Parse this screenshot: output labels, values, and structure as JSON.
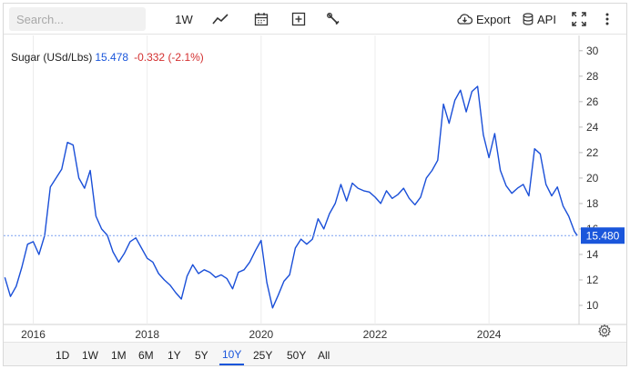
{
  "toolbar": {
    "search_placeholder": "Search...",
    "interval_label": "1W",
    "export_label": "Export",
    "api_label": "API",
    "icons": [
      "line-chart-icon",
      "calendar-icon",
      "add-indicator-icon",
      "drawing-tools-icon",
      "download-icon",
      "database-icon",
      "fullscreen-icon",
      "more-icon"
    ]
  },
  "legend": {
    "name": "Sugar (USd/Lbs)",
    "value": "15.478",
    "change": "-0.332 (-2.1%)"
  },
  "price_tag": "15.480",
  "ranges": [
    {
      "label": "1D",
      "active": false
    },
    {
      "label": "1W",
      "active": false
    },
    {
      "label": "1M",
      "active": false
    },
    {
      "label": "6M",
      "active": false
    },
    {
      "label": "1Y",
      "active": false
    },
    {
      "label": "5Y",
      "active": false
    },
    {
      "label": "10Y",
      "active": true
    },
    {
      "label": "25Y",
      "active": false
    },
    {
      "label": "50Y",
      "active": false
    },
    {
      "label": "All",
      "active": false
    }
  ],
  "colors": {
    "line": "#1a4fd8",
    "price_tag": "#1a56db",
    "change_negative": "#d32f2f"
  },
  "chart_data": {
    "type": "line",
    "series": [
      {
        "name": "Sugar (USd/Lbs)",
        "x": [
          2015.5,
          2015.6,
          2015.7,
          2015.8,
          2015.9,
          2016.0,
          2016.1,
          2016.2,
          2016.3,
          2016.4,
          2016.5,
          2016.6,
          2016.7,
          2016.8,
          2016.9,
          2017.0,
          2017.1,
          2017.2,
          2017.3,
          2017.4,
          2017.5,
          2017.6,
          2017.7,
          2017.8,
          2017.9,
          2018.0,
          2018.1,
          2018.2,
          2018.3,
          2018.4,
          2018.5,
          2018.6,
          2018.7,
          2018.8,
          2018.9,
          2019.0,
          2019.1,
          2019.2,
          2019.3,
          2019.4,
          2019.5,
          2019.6,
          2019.7,
          2019.8,
          2019.9,
          2020.0,
          2020.1,
          2020.2,
          2020.3,
          2020.4,
          2020.5,
          2020.6,
          2020.7,
          2020.8,
          2020.9,
          2021.0,
          2021.1,
          2021.2,
          2021.3,
          2021.4,
          2021.5,
          2021.6,
          2021.7,
          2021.8,
          2021.9,
          2022.0,
          2022.1,
          2022.2,
          2022.3,
          2022.4,
          2022.5,
          2022.6,
          2022.7,
          2022.8,
          2022.9,
          2023.0,
          2023.1,
          2023.2,
          2023.3,
          2023.4,
          2023.5,
          2023.6,
          2023.7,
          2023.8,
          2023.9,
          2024.0,
          2024.1,
          2024.2,
          2024.3,
          2024.4,
          2024.5,
          2024.6,
          2024.7,
          2024.8,
          2024.9,
          2025.0,
          2025.1,
          2025.2,
          2025.3,
          2025.4,
          2025.5,
          2025.55
        ],
        "y": [
          12.2,
          10.7,
          11.5,
          13.0,
          14.8,
          15.0,
          14.0,
          15.5,
          19.3,
          20.0,
          20.7,
          22.8,
          22.6,
          20.0,
          19.2,
          20.6,
          17.0,
          16.0,
          15.5,
          14.2,
          13.4,
          14.1,
          15.0,
          15.3,
          14.5,
          13.7,
          13.4,
          12.5,
          12.0,
          11.6,
          11.0,
          10.5,
          12.3,
          13.2,
          12.5,
          12.8,
          12.6,
          12.2,
          12.4,
          12.1,
          11.3,
          12.6,
          12.8,
          13.4,
          14.3,
          15.1,
          11.8,
          9.8,
          10.8,
          11.9,
          12.4,
          14.5,
          15.2,
          14.8,
          15.2,
          16.8,
          16.0,
          17.2,
          18.0,
          19.5,
          18.2,
          19.6,
          19.2,
          19.0,
          18.9,
          18.5,
          18.0,
          19.0,
          18.4,
          18.7,
          19.2,
          18.4,
          17.9,
          18.5,
          20.0,
          20.6,
          21.4,
          25.8,
          24.3,
          26.1,
          26.9,
          25.2,
          26.8,
          27.2,
          23.4,
          21.6,
          23.5,
          20.6,
          19.4,
          18.8,
          19.2,
          19.5,
          18.6,
          22.3,
          21.9,
          19.5,
          18.6,
          19.3,
          17.8,
          17.0,
          15.8,
          15.48
        ]
      }
    ],
    "xlim": [
      2015.48,
      2025.58
    ],
    "ylim": [
      8.5,
      31.2
    ],
    "x_ticks": [
      2016,
      2018,
      2020,
      2022,
      2024
    ],
    "x_tick_labels": [
      "2016",
      "2018",
      "2020",
      "2022",
      "2024"
    ],
    "y_ticks": [
      10,
      12,
      14,
      16,
      18,
      20,
      22,
      24,
      26,
      28,
      30
    ],
    "y_tick_labels": [
      "10",
      "12",
      "14",
      "16",
      "18",
      "20",
      "22",
      "24",
      "26",
      "28",
      "30"
    ],
    "last_value": 15.48,
    "grid": "vertical",
    "title": "",
    "xlabel": "",
    "ylabel": ""
  }
}
